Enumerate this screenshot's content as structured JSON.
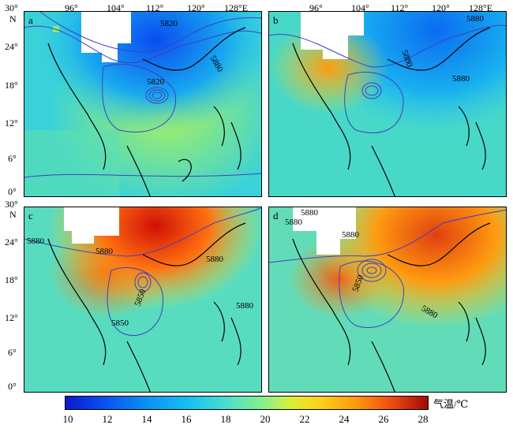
{
  "panels": [
    {
      "id": "a",
      "label": "a",
      "contours": [
        "5820",
        "5880",
        "5820"
      ]
    },
    {
      "id": "b",
      "label": "b",
      "contours": [
        "5880",
        "5880",
        "5880"
      ]
    },
    {
      "id": "c",
      "label": "c",
      "contours": [
        "5880",
        "5880",
        "5880",
        "5850",
        "5850",
        "5880"
      ]
    },
    {
      "id": "d",
      "label": "d",
      "contours": [
        "5880",
        "5880",
        "5880",
        "5850",
        "5880"
      ]
    }
  ],
  "axes": {
    "top_lon_left": [
      "96°",
      "104°",
      "112°",
      "120°",
      "128°E"
    ],
    "top_lon_right": [
      "96°",
      "104°",
      "112°",
      "120°",
      "128°E"
    ],
    "lat_top": [
      "30°",
      "N",
      "24°",
      "18°",
      "12°",
      "6°",
      "0°"
    ],
    "lat_bottom": [
      "30°",
      "N",
      "24°",
      "18°",
      "12°",
      "6°",
      "0°"
    ]
  },
  "colorbar": {
    "ticks": [
      "10",
      "12",
      "14",
      "16",
      "18",
      "20",
      "22",
      "24",
      "26",
      "28"
    ],
    "unit": "气温/℃",
    "colors": [
      "#0a1bd0",
      "#0a8ff5",
      "#4fe0c8",
      "#d8f03a",
      "#ff9a10",
      "#a00a08"
    ]
  }
}
